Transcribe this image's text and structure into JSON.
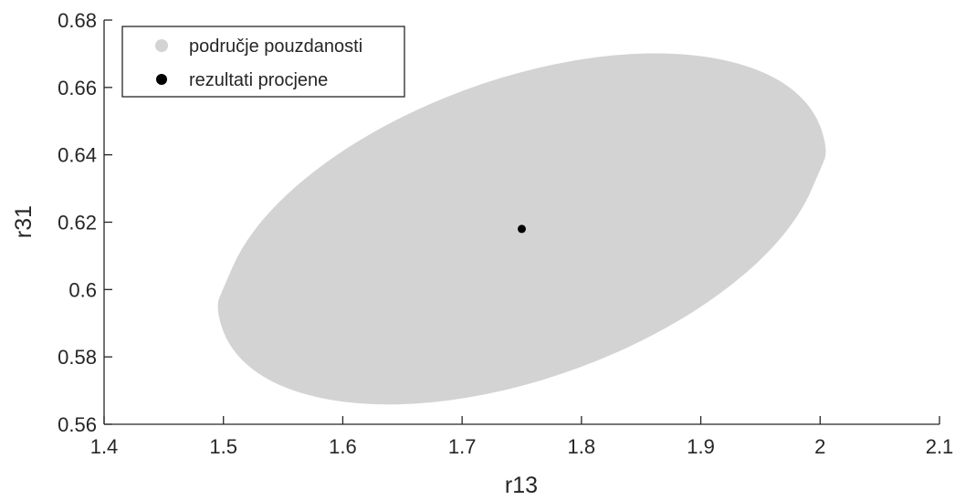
{
  "chart_data": {
    "type": "scatter",
    "title": "",
    "xlabel": "r13",
    "ylabel": "r31",
    "xlim": [
      1.4,
      2.1
    ],
    "ylim": [
      0.56,
      0.68
    ],
    "x_ticks": [
      1.4,
      1.5,
      1.6,
      1.7,
      1.8,
      1.9,
      2.0,
      2.1
    ],
    "y_ticks": [
      0.56,
      0.58,
      0.6,
      0.62,
      0.64,
      0.66,
      0.68
    ],
    "x_tick_labels": [
      "1.4",
      "1.5",
      "1.6",
      "1.7",
      "1.8",
      "1.9",
      "2",
      "2.1"
    ],
    "y_tick_labels": [
      "0.56",
      "0.58",
      "0.6",
      "0.62",
      "0.64",
      "0.66",
      "0.68"
    ],
    "grid": false,
    "legend_position": "top-left",
    "series": [
      {
        "name": "područje pouzdanosti",
        "kind": "confidence-region",
        "color": "#d3d3d3",
        "outline": [
          [
            2.0067,
            0.6412
          ],
          [
            1.9965,
            0.6526
          ],
          [
            1.9714,
            0.6615
          ],
          [
            1.933,
            0.6674
          ],
          [
            1.8836,
            0.6703
          ],
          [
            1.8262,
            0.6699
          ],
          [
            1.7642,
            0.6662
          ],
          [
            1.7015,
            0.6595
          ],
          [
            1.6418,
            0.6502
          ],
          [
            1.5889,
            0.6389
          ],
          [
            1.5459,
            0.6263
          ],
          [
            1.5157,
            0.6132
          ],
          [
            1.4999,
            0.6004
          ],
          [
            1.4933,
            0.5948
          ],
          [
            1.5035,
            0.5834
          ],
          [
            1.5286,
            0.5745
          ],
          [
            1.567,
            0.5686
          ],
          [
            1.6164,
            0.5657
          ],
          [
            1.6738,
            0.5661
          ],
          [
            1.7358,
            0.5698
          ],
          [
            1.7985,
            0.5765
          ],
          [
            1.8582,
            0.5858
          ],
          [
            1.9111,
            0.5971
          ],
          [
            1.9541,
            0.6097
          ],
          [
            1.9843,
            0.6228
          ],
          [
            2.0001,
            0.6356
          ]
        ]
      },
      {
        "name": "rezultati procjene",
        "kind": "point",
        "color": "#000000",
        "x": [
          1.75
        ],
        "y": [
          0.618
        ]
      }
    ]
  }
}
